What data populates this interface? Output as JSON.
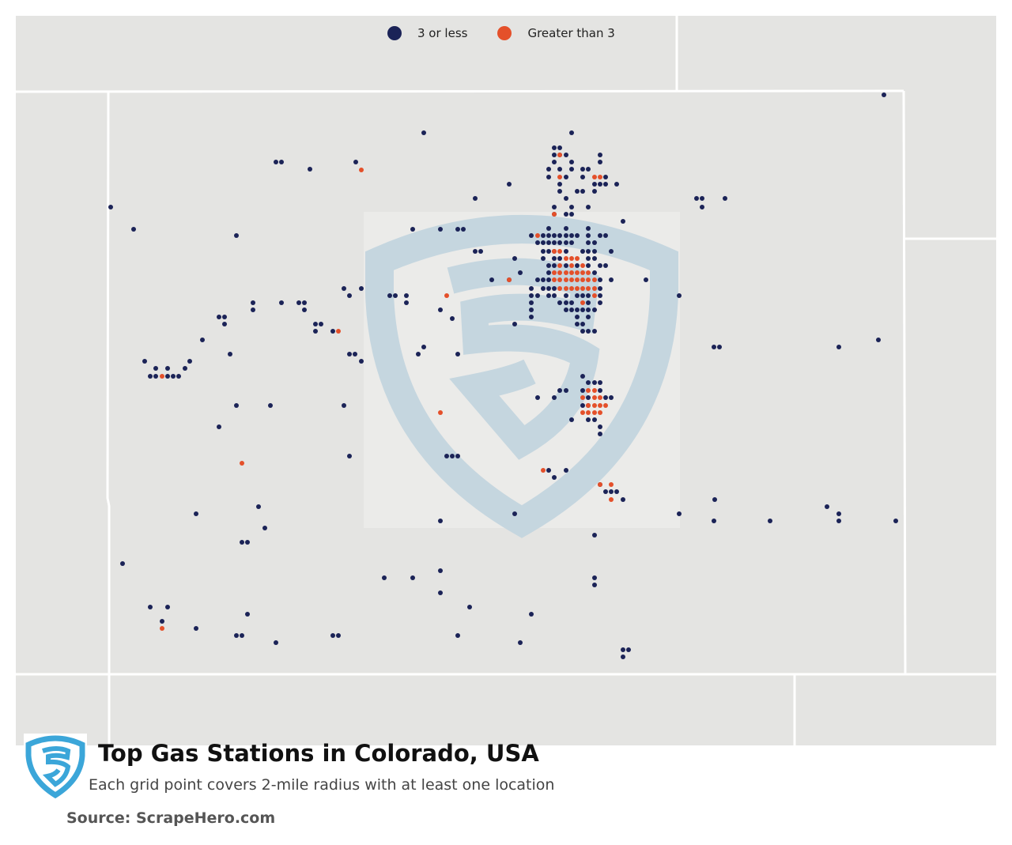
{
  "legend": {
    "items": [
      {
        "label": "3 or less",
        "color": "#1b2357"
      },
      {
        "label": "Greater than 3",
        "color": "#e4502a"
      }
    ]
  },
  "footer": {
    "title": "Top Gas Stations in Colorado, USA",
    "subtitle": "Each grid point covers 2-mile radius with at least one location",
    "source": "Source: ScrapeHero.com"
  },
  "colors": {
    "land": "#e4e4e2",
    "border": "#ffffff",
    "watermark": "#c5d6df",
    "logo": "#3ba6d9"
  }
}
